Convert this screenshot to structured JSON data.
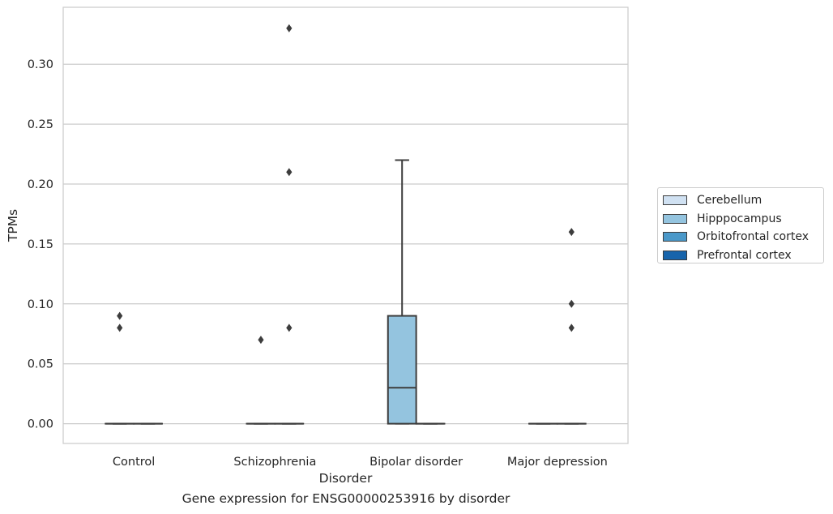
{
  "chart_data": {
    "type": "box",
    "title": "",
    "caption": "Gene expression for ENSG00000253916 by disorder",
    "xlabel": "Disorder",
    "ylabel": "TPMs",
    "ylim": [
      -0.0165,
      0.3475
    ],
    "yticks": [
      "0.00",
      "0.05",
      "0.10",
      "0.15",
      "0.20",
      "0.25",
      "0.30"
    ],
    "ytick_values": [
      0,
      0.05,
      0.1,
      0.15,
      0.2,
      0.25,
      0.3
    ],
    "categories": [
      "Control",
      "Schizophrenia",
      "Bipolar disorder",
      "Major depression"
    ],
    "grid": "horizontal",
    "legend_position": "right",
    "series": [
      {
        "name": "Cerebellum",
        "color": "#d0e1f2",
        "boxes": [
          null,
          null,
          null,
          null
        ]
      },
      {
        "name": "Hipppocampus",
        "color": "#94c4df",
        "boxes": [
          {
            "q1": 0,
            "median": 0,
            "q3": 0,
            "whisker_low": 0,
            "whisker_high": 0,
            "outliers": [
              0.08,
              0.09
            ]
          },
          {
            "q1": 0,
            "median": 0,
            "q3": 0,
            "whisker_low": 0,
            "whisker_high": 0,
            "outliers": [
              0.07
            ]
          },
          {
            "q1": 0,
            "median": 0.03,
            "q3": 0.09,
            "whisker_low": 0,
            "whisker_high": 0.22,
            "outliers": []
          },
          {
            "q1": 0,
            "median": 0,
            "q3": 0,
            "whisker_low": 0,
            "whisker_high": 0,
            "outliers": []
          }
        ]
      },
      {
        "name": "Orbitofrontal cortex",
        "color": "#4a98c9",
        "boxes": [
          {
            "q1": 0,
            "median": 0,
            "q3": 0,
            "whisker_low": 0,
            "whisker_high": 0,
            "outliers": []
          },
          {
            "q1": 0,
            "median": 0,
            "q3": 0,
            "whisker_low": 0,
            "whisker_high": 0,
            "outliers": [
              0.08,
              0.21,
              0.33
            ]
          },
          {
            "q1": 0,
            "median": 0,
            "q3": 0,
            "whisker_low": 0,
            "whisker_high": 0,
            "outliers": []
          },
          {
            "q1": 0,
            "median": 0,
            "q3": 0,
            "whisker_low": 0,
            "whisker_high": 0,
            "outliers": [
              0.08,
              0.1,
              0.16
            ]
          }
        ]
      },
      {
        "name": "Prefrontal cortex",
        "color": "#1764ab",
        "boxes": [
          null,
          null,
          null,
          null
        ]
      }
    ]
  }
}
